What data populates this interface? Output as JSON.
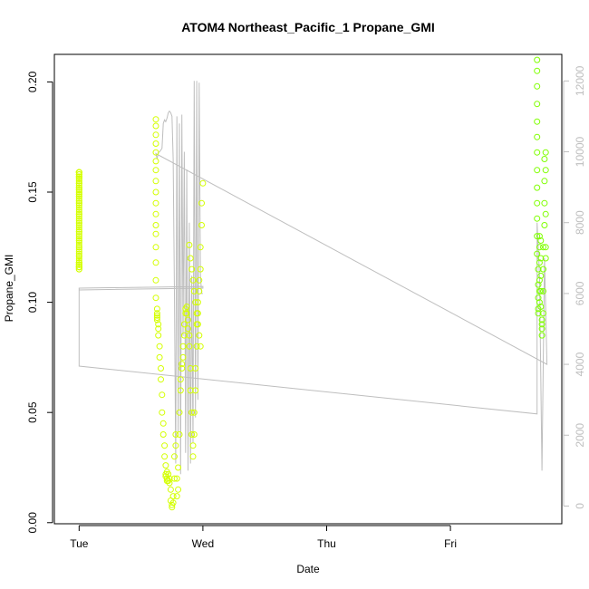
{
  "chart_data": {
    "type": "scatter",
    "title": "ATOM4 Northeast_Pacific_1 Propane_GMI",
    "xlabel": "Date",
    "ylabel": "Propane_GMI",
    "x_axis": {
      "ticks": [
        {
          "label": "Tue",
          "value": 0
        },
        {
          "label": "Wed",
          "value": 1
        },
        {
          "label": "Thu",
          "value": 2
        },
        {
          "label": "Fri",
          "value": 3
        }
      ],
      "xlim": [
        -0.2,
        3.9
      ]
    },
    "y_axis": {
      "ticks": [
        0.0,
        0.05,
        0.1,
        0.15,
        0.2
      ],
      "tick_labels": [
        "0.00",
        "0.05",
        "0.10",
        "0.15",
        "0.20"
      ],
      "ylim": [
        -0.0005,
        0.2125
      ]
    },
    "y2_axis": {
      "ticks": [
        0,
        2000,
        4000,
        6000,
        8000,
        10000,
        12000
      ],
      "tick_labels": [
        "0",
        "2000",
        "4000",
        "6000",
        "8000",
        "10000",
        "12000"
      ],
      "ylim": [
        -500,
        12750
      ],
      "color": "#bebebe"
    },
    "colors": {
      "altitude_line": "#bebebe",
      "points_early": "#d4ff00",
      "points_late": "#7fff00"
    },
    "series": [
      {
        "kind": "points",
        "color_group": "points_early",
        "x": [
          0.0,
          0.0,
          0.0,
          0.0,
          0.0,
          0.0,
          0.0,
          0.0,
          0.0,
          0.0,
          0.0,
          0.0,
          0.0,
          0.0,
          0.0,
          0.0,
          0.0,
          0.0,
          0.0,
          0.0,
          0.0,
          0.0,
          0.0,
          0.0,
          0.0,
          0.0,
          0.0,
          0.0,
          0.0,
          0.0,
          0.0,
          0.0,
          0.0,
          0.0,
          0.0,
          0.0,
          0.0,
          0.0,
          0.0,
          0.0,
          0.0,
          0.0,
          0.0,
          0.0,
          0.0,
          0.0,
          0.0,
          0.0,
          0.0,
          0.0,
          0.0,
          0.0,
          0.0,
          0.0,
          0.0,
          0.0,
          0.0,
          0.0,
          0.0,
          0.0,
          0.0,
          0.0,
          0.0,
          0.0,
          0.0,
          0.0,
          0.0,
          0.0,
          0.0,
          0.0,
          0.0,
          0.0,
          0.0,
          0.0,
          0.0,
          0.0,
          0.0,
          0.0,
          0.0,
          0.0,
          0.0
        ],
        "y": [
          0.159,
          0.157,
          0.155,
          0.152,
          0.149,
          0.145,
          0.142,
          0.138,
          0.134,
          0.13,
          0.126,
          0.122,
          0.118,
          0.116,
          0.116,
          0.159,
          0.158,
          0.157,
          0.154,
          0.15,
          0.147,
          0.143,
          0.139,
          0.135,
          0.131,
          0.127,
          0.123,
          0.119,
          0.117,
          0.115,
          0.158,
          0.156,
          0.153,
          0.151,
          0.148,
          0.144,
          0.14,
          0.136,
          0.132,
          0.128,
          0.124,
          0.12,
          0.118,
          0.117,
          0.116,
          0.159,
          0.157,
          0.155,
          0.152,
          0.149,
          0.146,
          0.141,
          0.137,
          0.133,
          0.129,
          0.125,
          0.121,
          0.118,
          0.116,
          0.115,
          0.158,
          0.156,
          0.154,
          0.151,
          0.148,
          0.145,
          0.14,
          0.136,
          0.132,
          0.128,
          0.125,
          0.121,
          0.118,
          0.117,
          0.116,
          0.159,
          0.157,
          0.154,
          0.15,
          0.146,
          0.116
        ]
      },
      {
        "kind": "points",
        "color_group": "points_early",
        "x": [
          0.62,
          0.62,
          0.62,
          0.62,
          0.62,
          0.62,
          0.62,
          0.62,
          0.62,
          0.62,
          0.62,
          0.62,
          0.62,
          0.62,
          0.62,
          0.62,
          0.62,
          0.63,
          0.63,
          0.63,
          0.63,
          0.63,
          0.64,
          0.64,
          0.64,
          0.65,
          0.65,
          0.66,
          0.66,
          0.67,
          0.67,
          0.68,
          0.68,
          0.69,
          0.69,
          0.7,
          0.7,
          0.7,
          0.71,
          0.71,
          0.71,
          0.72,
          0.72,
          0.73,
          0.73,
          0.74,
          0.74,
          0.75,
          0.75,
          0.76,
          0.76,
          0.77,
          0.77,
          0.78,
          0.78,
          0.79,
          0.79,
          0.8,
          0.8,
          0.81,
          0.81,
          0.82,
          0.82,
          0.83,
          0.83,
          0.84,
          0.84,
          0.85,
          0.85,
          0.86,
          0.86,
          0.87,
          0.87,
          0.88,
          0.88,
          0.89,
          0.89,
          0.9,
          0.9,
          0.91,
          0.91,
          0.92,
          0.92,
          0.93,
          0.93,
          0.94,
          0.94,
          0.95,
          0.95,
          0.96,
          0.96,
          0.97,
          0.97,
          0.98,
          0.98,
          0.99,
          0.99,
          1.0,
          0.89,
          0.9,
          0.91,
          0.92,
          0.93,
          0.94,
          0.95,
          0.96,
          0.97,
          0.98
        ],
        "y": [
          0.183,
          0.18,
          0.176,
          0.172,
          0.168,
          0.164,
          0.16,
          0.155,
          0.15,
          0.145,
          0.14,
          0.135,
          0.131,
          0.125,
          0.118,
          0.11,
          0.102,
          0.097,
          0.095,
          0.094,
          0.093,
          0.092,
          0.09,
          0.088,
          0.085,
          0.08,
          0.075,
          0.07,
          0.065,
          0.058,
          0.05,
          0.045,
          0.04,
          0.035,
          0.03,
          0.026,
          0.022,
          0.021,
          0.023,
          0.02,
          0.019,
          0.022,
          0.019,
          0.018,
          0.02,
          0.015,
          0.01,
          0.008,
          0.007,
          0.009,
          0.012,
          0.02,
          0.03,
          0.04,
          0.035,
          0.02,
          0.012,
          0.015,
          0.025,
          0.04,
          0.05,
          0.06,
          0.065,
          0.07,
          0.072,
          0.075,
          0.08,
          0.085,
          0.09,
          0.095,
          0.097,
          0.098,
          0.095,
          0.092,
          0.088,
          0.085,
          0.08,
          0.07,
          0.06,
          0.05,
          0.04,
          0.035,
          0.03,
          0.04,
          0.05,
          0.06,
          0.07,
          0.08,
          0.09,
          0.095,
          0.1,
          0.105,
          0.11,
          0.115,
          0.125,
          0.135,
          0.145,
          0.154,
          0.126,
          0.12,
          0.115,
          0.11,
          0.105,
          0.1,
          0.095,
          0.09,
          0.085,
          0.08
        ]
      },
      {
        "kind": "points",
        "color_group": "points_late",
        "x": [
          3.7,
          3.7,
          3.7,
          3.7,
          3.7,
          3.7,
          3.7,
          3.7,
          3.7,
          3.7,
          3.7,
          3.7,
          3.7,
          3.71,
          3.71,
          3.71,
          3.71,
          3.71,
          3.72,
          3.72,
          3.72,
          3.72,
          3.72,
          3.72,
          3.73,
          3.73,
          3.73,
          3.73,
          3.73,
          3.74,
          3.74,
          3.74,
          3.74,
          3.75,
          3.75,
          3.75,
          3.75,
          3.76,
          3.76,
          3.76,
          3.76,
          3.77,
          3.77,
          3.77,
          3.77,
          3.77
        ],
        "y": [
          0.21,
          0.205,
          0.198,
          0.19,
          0.182,
          0.175,
          0.168,
          0.16,
          0.152,
          0.145,
          0.138,
          0.13,
          0.122,
          0.115,
          0.108,
          0.102,
          0.097,
          0.095,
          0.1,
          0.105,
          0.11,
          0.118,
          0.125,
          0.13,
          0.128,
          0.12,
          0.112,
          0.105,
          0.098,
          0.092,
          0.088,
          0.085,
          0.09,
          0.095,
          0.105,
          0.115,
          0.125,
          0.135,
          0.145,
          0.155,
          0.165,
          0.168,
          0.16,
          0.14,
          0.12,
          0.125
        ]
      }
    ],
    "altitude_line": {
      "axis": "y2",
      "x": [
        0.0,
        0.0,
        1.0,
        1.0,
        0.0,
        0.0,
        3.7,
        3.7,
        3.72,
        3.74,
        3.76,
        3.78,
        0.62,
        0.63,
        0.64,
        0.65,
        0.66,
        0.67,
        0.68,
        0.69,
        0.7,
        0.71,
        0.72,
        0.73,
        0.74,
        0.75,
        0.76,
        0.77,
        0.78,
        0.79,
        0.8,
        0.81,
        0.82,
        0.83,
        0.84,
        0.85,
        0.86,
        0.87,
        0.88,
        0.89,
        0.9,
        0.91,
        0.92,
        0.93,
        0.94,
        0.95,
        0.96,
        0.97,
        0.98,
        0.99,
        1.0
      ],
      "y": [
        6100,
        6150,
        6200,
        6150,
        6100,
        3950,
        2600,
        8000,
        6500,
        1000,
        7000,
        4000,
        9950,
        9800,
        9980,
        10000,
        10050,
        10100,
        10800,
        10900,
        10850,
        10950,
        11100,
        11150,
        11100,
        11000,
        9800,
        6000,
        1200,
        11000,
        2100,
        10800,
        900,
        11050,
        4800,
        10000,
        1500,
        9500,
        1000,
        8000,
        1200,
        6500,
        1800,
        12000,
        2500,
        12000,
        3000,
        11950,
        6500,
        6000,
        6000
      ]
    }
  }
}
